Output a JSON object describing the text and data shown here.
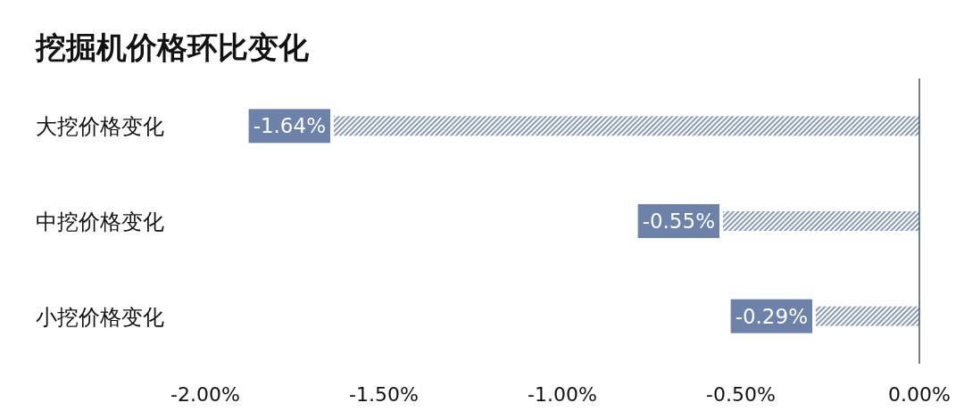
{
  "chart_data": {
    "type": "bar",
    "orientation": "horizontal",
    "title": "挖掘机价格环比变化",
    "categories": [
      "大挖价格变化",
      "中挖价格变化",
      "小挖价格变化"
    ],
    "series": [
      {
        "color": "#6c82a8",
        "values": [
          -1.64,
          -0.55,
          -0.29
        ],
        "value_labels": [
          "-1.64%",
          "-0.55%",
          "-0.29%"
        ]
      }
    ],
    "xlim": [
      -2,
      0
    ],
    "xticks": [
      {
        "value": -2,
        "label": "-2.00%"
      },
      {
        "value": -1.5,
        "label": "-1.50%"
      },
      {
        "value": -1,
        "label": "-1.00%"
      },
      {
        "value": -0.5,
        "label": "-0.50%"
      },
      {
        "value": 0,
        "label": "0.00%"
      }
    ]
  }
}
